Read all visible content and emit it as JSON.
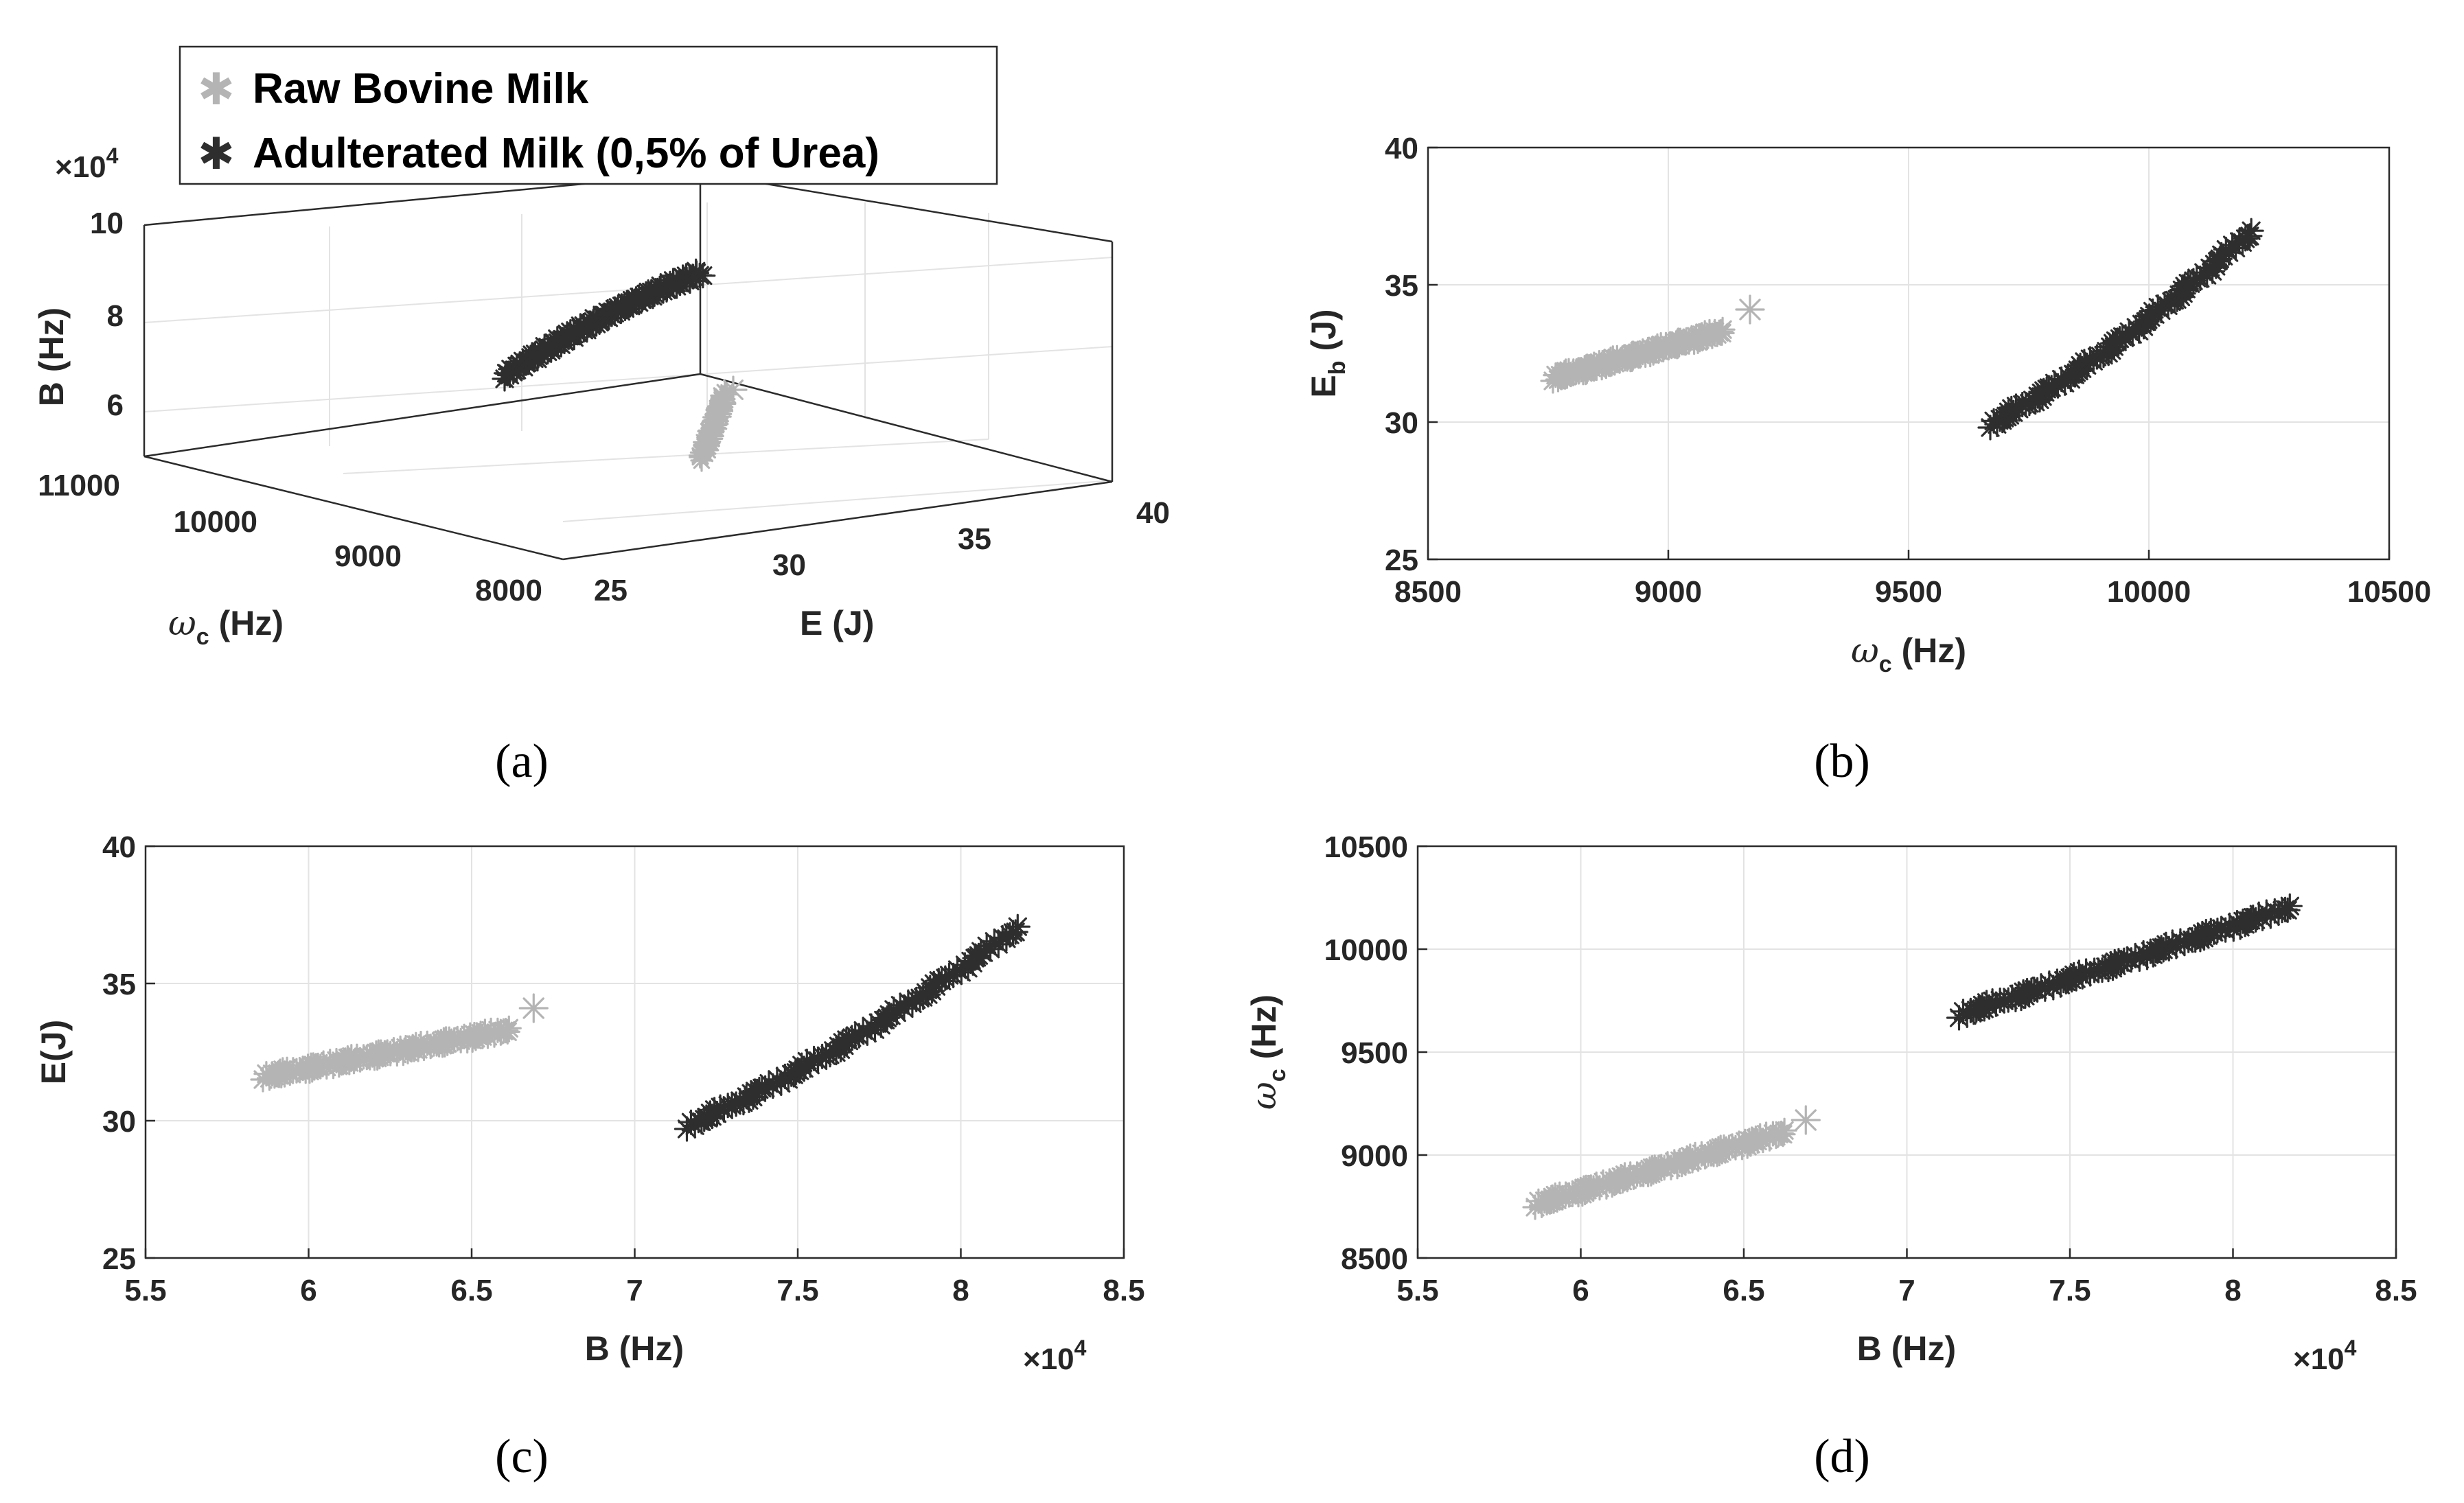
{
  "colors": {
    "raw": "#b4b4b4",
    "adulterated": "#2e2e2e",
    "axis": "#2b2b2b",
    "grid": "#e3e3e3"
  },
  "legend": {
    "items": [
      {
        "label": "Raw Bovine Milk",
        "color": "#b4b4b4"
      },
      {
        "label": "Adulterated Milk (0,5% of Urea)",
        "color": "#2e2e2e"
      }
    ]
  },
  "panels": [
    "(a)",
    "(b)",
    "(c)",
    "(d)"
  ],
  "chart_data": [
    {
      "id": "a",
      "type": "scatter3d",
      "panel": "(a)",
      "zlabel": "B (Hz)",
      "xlabel_symbol": "ω",
      "xlabel_sub": "c",
      "xlabel_unit": " (Hz)",
      "ylabel": "E (J)",
      "z_multiplier": "×10",
      "z_multiplier_exp": "4",
      "xticks": [
        "11000",
        "10000",
        "9000",
        "8000"
      ],
      "yticks": [
        "25",
        "30",
        "35",
        "40"
      ],
      "zticks": [
        "6",
        "8",
        "10"
      ],
      "series": [
        {
          "name": "Raw Bovine Milk",
          "omega_c": [
            8750,
            9170
          ],
          "E": [
            31.5,
            34.1
          ],
          "B": [
            58500,
            66900
          ]
        },
        {
          "name": "Adulterated Milk (0,5% of Urea)",
          "omega_c": [
            9660,
            10210
          ],
          "E": [
            29.8,
            37.0
          ],
          "B": [
            71500,
            81800
          ]
        }
      ]
    },
    {
      "id": "b",
      "type": "scatter",
      "panel": "(b)",
      "ylabel": "E",
      "ylabel_sub": "b",
      "ylabel_unit": " (J)",
      "xlabel_symbol": "ω",
      "xlabel_sub": "c",
      "xlabel_unit": " (Hz)",
      "xlim": [
        8500,
        10500
      ],
      "ylim": [
        25,
        40
      ],
      "xticks": [
        8500,
        9000,
        9500,
        10000,
        10500
      ],
      "yticks": [
        25,
        30,
        35,
        40
      ],
      "series": [
        {
          "name": "Raw Bovine Milk",
          "x": [
            8760,
            9110
          ],
          "y": [
            31.6,
            33.3
          ],
          "curve": 0.0,
          "outlier": [
            9170,
            34.1
          ]
        },
        {
          "name": "Adulterated Milk (0,5% of Urea)",
          "x": [
            9670,
            10210
          ],
          "y": [
            29.9,
            36.9
          ],
          "curve": 0.25
        }
      ]
    },
    {
      "id": "c",
      "type": "scatter",
      "panel": "(c)",
      "ylabel": "E(J)",
      "xlabel": "B (Hz)",
      "x_multiplier": "×10",
      "x_multiplier_exp": "4",
      "xlim": [
        5.5,
        8.5
      ],
      "ylim": [
        25,
        40
      ],
      "xticks": [
        5.5,
        6,
        6.5,
        7,
        7.5,
        8,
        8.5
      ],
      "yticks": [
        25,
        30,
        35,
        40
      ],
      "series": [
        {
          "name": "Raw Bovine Milk",
          "x": [
            5.86,
            6.61
          ],
          "y": [
            31.6,
            33.3
          ],
          "curve": 0.0,
          "outlier": [
            6.69,
            34.1
          ]
        },
        {
          "name": "Adulterated Milk (0,5% of Urea)",
          "x": [
            7.16,
            8.17
          ],
          "y": [
            29.8,
            37.0
          ],
          "curve": 0.25
        }
      ]
    },
    {
      "id": "d",
      "type": "scatter",
      "panel": "(d)",
      "ylabel_symbol": "ω",
      "ylabel_sub": "c",
      "ylabel_unit": " (Hz)",
      "xlabel": "B (Hz)",
      "x_multiplier": "×10",
      "x_multiplier_exp": "4",
      "xlim": [
        5.5,
        8.5
      ],
      "ylim": [
        8500,
        10500
      ],
      "xticks": [
        5.5,
        6,
        6.5,
        7,
        7.5,
        8,
        8.5
      ],
      "yticks": [
        8500,
        9000,
        9500,
        10000,
        10500
      ],
      "series": [
        {
          "name": "Raw Bovine Milk",
          "x": [
            5.86,
            6.62
          ],
          "y": [
            8760,
            9110
          ],
          "curve": 0.0,
          "outlier": [
            6.69,
            9170
          ]
        },
        {
          "name": "Adulterated Milk (0,5% of Urea)",
          "x": [
            7.16,
            8.17
          ],
          "y": [
            9680,
            10200
          ],
          "curve": 0.0
        }
      ]
    }
  ]
}
